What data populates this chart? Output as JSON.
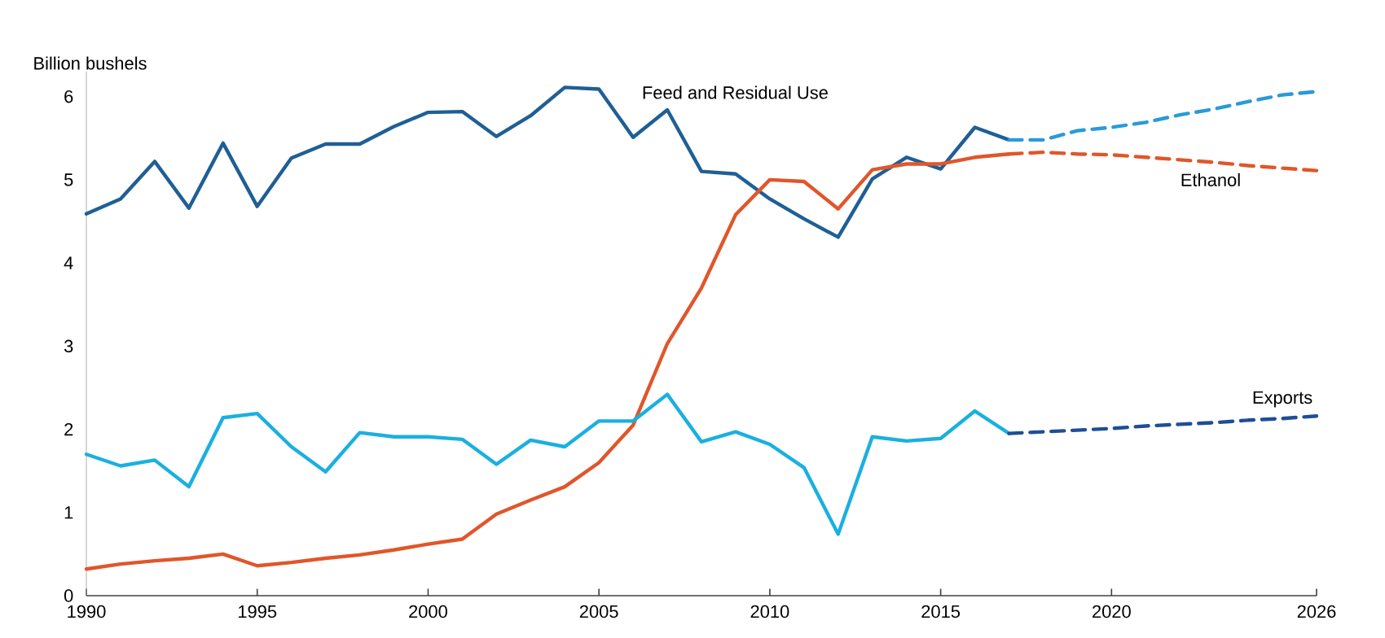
{
  "chart_data": {
    "type": "line",
    "ylabel": "Billion bushels",
    "xlim": [
      1990,
      2026
    ],
    "xticks": [
      1990,
      1995,
      2000,
      2005,
      2010,
      2015,
      2020,
      2026
    ],
    "ylim": [
      0,
      6.3
    ],
    "yticks": [
      0,
      1,
      2,
      3,
      4,
      5,
      6
    ],
    "grid": false,
    "legend": false,
    "series": [
      {
        "name": "Feed and Residual Use",
        "color": "#1f5f95",
        "line_style": "solid",
        "x": [
          1990,
          1991,
          1992,
          1993,
          1994,
          1995,
          1996,
          1997,
          1998,
          1999,
          2000,
          2001,
          2002,
          2003,
          2004,
          2005,
          2006,
          2007,
          2008,
          2009,
          2010,
          2011,
          2012,
          2013,
          2014,
          2015,
          2016,
          2017
        ],
        "values": [
          4.59,
          4.77,
          5.22,
          4.66,
          5.44,
          4.68,
          5.26,
          5.43,
          5.43,
          5.64,
          5.81,
          5.82,
          5.52,
          5.77,
          6.11,
          6.09,
          5.51,
          5.84,
          5.1,
          5.07,
          4.77,
          4.53,
          4.31,
          5.01,
          5.27,
          5.13,
          5.63,
          5.48
        ]
      },
      {
        "color": "#2a9ad8",
        "line_style": "dashed",
        "x": [
          2017,
          2018,
          2019,
          2020,
          2021,
          2022,
          2023,
          2024,
          2025,
          2026
        ],
        "values": [
          5.48,
          5.48,
          5.59,
          5.63,
          5.69,
          5.78,
          5.85,
          5.94,
          6.02,
          6.06
        ]
      },
      {
        "color": "#e0562a",
        "line_style": "solid",
        "x": [
          1990,
          1991,
          1992,
          1993,
          1994,
          1995,
          1996,
          1997,
          1998,
          1999,
          2000,
          2001,
          2002,
          2003,
          2004,
          2005,
          2006,
          2007,
          2008,
          2009,
          2010,
          2011,
          2012,
          2013,
          2014,
          2015,
          2016,
          2017
        ],
        "values": [
          0.32,
          0.38,
          0.42,
          0.45,
          0.5,
          0.36,
          0.4,
          0.45,
          0.49,
          0.55,
          0.62,
          0.68,
          0.98,
          1.15,
          1.31,
          1.6,
          2.05,
          3.03,
          3.7,
          4.58,
          5.0,
          4.98,
          4.65,
          5.12,
          5.19,
          5.19,
          5.27,
          5.31
        ]
      },
      {
        "name": "Ethanol",
        "color": "#e0562a",
        "line_style": "dashed",
        "x": [
          2017,
          2018,
          2019,
          2020,
          2021,
          2022,
          2023,
          2024,
          2025,
          2026
        ],
        "values": [
          5.31,
          5.33,
          5.31,
          5.3,
          5.27,
          5.24,
          5.21,
          5.17,
          5.14,
          5.11
        ]
      },
      {
        "color": "#1ab0e0",
        "line_style": "solid",
        "x": [
          1990,
          1991,
          1992,
          1993,
          1994,
          1995,
          1996,
          1997,
          1998,
          1999,
          2000,
          2001,
          2002,
          2003,
          2004,
          2005,
          2006,
          2007,
          2008,
          2009,
          2010,
          2011,
          2012,
          2013,
          2014,
          2015,
          2016,
          2017
        ],
        "values": [
          1.7,
          1.56,
          1.63,
          1.31,
          2.14,
          2.19,
          1.79,
          1.49,
          1.96,
          1.91,
          1.91,
          1.88,
          1.58,
          1.87,
          1.79,
          2.1,
          2.1,
          2.42,
          1.85,
          1.97,
          1.82,
          1.54,
          0.74,
          1.91,
          1.86,
          1.89,
          2.22,
          1.95
        ]
      },
      {
        "name": "Exports",
        "color": "#1f4e96",
        "line_style": "dashed",
        "x": [
          2017,
          2018,
          2019,
          2020,
          2021,
          2022,
          2023,
          2024,
          2025,
          2026
        ],
        "values": [
          1.95,
          1.97,
          1.99,
          2.01,
          2.04,
          2.06,
          2.08,
          2.11,
          2.13,
          2.16
        ]
      }
    ]
  }
}
